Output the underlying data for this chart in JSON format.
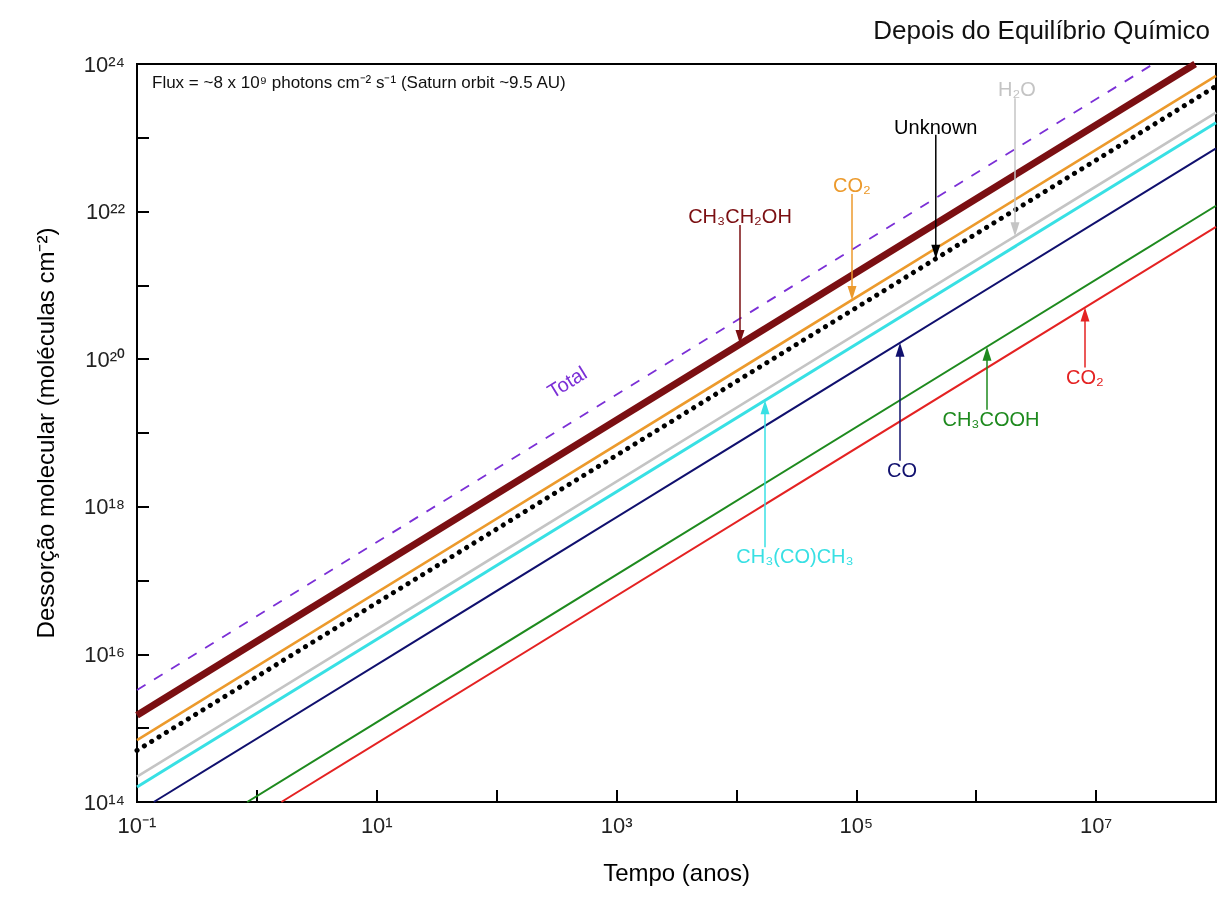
{
  "chart_data": {
    "type": "line",
    "title": "Depois do Equilíbrio Químico",
    "xlabel": "Tempo (anos)",
    "ylabel": "Dessorção molecular (moléculas cm⁻²)",
    "log": "xy",
    "grid": false,
    "marker": "none",
    "xlim": [
      0.1,
      100000000
    ],
    "ylim": [
      100000000000000.0,
      1e+24
    ],
    "xticks": [
      {
        "value": 0.1,
        "label": "10⁻¹"
      },
      {
        "value": 1,
        "label": null
      },
      {
        "value": 10,
        "label": "10¹"
      },
      {
        "value": 100,
        "label": null
      },
      {
        "value": 1000,
        "label": "10³"
      },
      {
        "value": 10000,
        "label": null
      },
      {
        "value": 100000,
        "label": "10⁵"
      },
      {
        "value": 1000000,
        "label": null
      },
      {
        "value": 10000000,
        "label": "10⁷"
      },
      {
        "value": 100000000,
        "label": null
      }
    ],
    "yticks": [
      {
        "value": 100000000000000.0,
        "label": "10¹⁴"
      },
      {
        "value": 1000000000000000.0,
        "label": null
      },
      {
        "value": 1e+16,
        "label": "10¹⁶"
      },
      {
        "value": 1e+17,
        "label": null
      },
      {
        "value": 1e+18,
        "label": "10¹⁸"
      },
      {
        "value": 1e+19,
        "label": null
      },
      {
        "value": 1e+20,
        "label": "10²⁰"
      },
      {
        "value": 1e+21,
        "label": null
      },
      {
        "value": 1e+22,
        "label": "10²²"
      },
      {
        "value": 1e+23,
        "label": null
      },
      {
        "value": 1e+24,
        "label": "10²⁴"
      }
    ],
    "series": [
      {
        "color": "#7b2fd6",
        "line_style": "dashed",
        "x": [
          0.1,
          30000000
        ],
        "values": [
          3300000000000000.0,
          1e+24
        ]
      },
      {
        "color": "#7b0f12",
        "line_style": "solid",
        "x": [
          0.1,
          67000000
        ],
        "values": [
          1500000000000000.0,
          1e+24
        ]
      },
      {
        "color": "#ec9a2c",
        "line_style": "solid",
        "x": [
          0.1,
          100000000
        ],
        "values": [
          690000000000000.0,
          6.9e+23
        ]
      },
      {
        "color": "#000000",
        "line_style": "dotted",
        "x": [
          0.1,
          100000000
        ],
        "values": [
          500000000000000.0,
          5e+23
        ]
      },
      {
        "color": "#c4c4c4",
        "line_style": "solid",
        "x": [
          0.1,
          100000000
        ],
        "values": [
          220000000000000.0,
          2.2e+23
        ]
      },
      {
        "color": "#38e0e4",
        "line_style": "solid",
        "x": [
          0.1,
          100000000
        ],
        "values": [
          160000000000000.0,
          1.6e+23
        ]
      },
      {
        "color": "#10106e",
        "line_style": "solid",
        "x": [
          0.138,
          100000000
        ],
        "values": [
          100000000000000.0,
          7.2e+22
        ]
      },
      {
        "color": "#1e8a1e",
        "line_style": "solid",
        "x": [
          0.83,
          100000000
        ],
        "values": [
          100000000000000.0,
          1.2e+22
        ]
      },
      {
        "color": "#e42222",
        "line_style": "solid",
        "x": [
          1.6,
          100000000
        ],
        "values": [
          100000000000000.0,
          6.2e+21
        ]
      }
    ],
    "annotations": [
      "Flux = ~8 x 10⁹ photons cm⁻² s⁻¹ (Saturn orbit ~9.5 AU)",
      {
        "text": "Total",
        "x": 450,
        "y": 1.5e+19
      },
      "CH₃CH₂OH",
      "CO₂",
      {
        "text": "Unknown",
        "x": 460000,
        "y": 2.3e+21
      },
      "H₂O",
      "CH₃(CO)CH₃",
      "CO",
      "CH₃COOH",
      "CO₂"
    ]
  }
}
